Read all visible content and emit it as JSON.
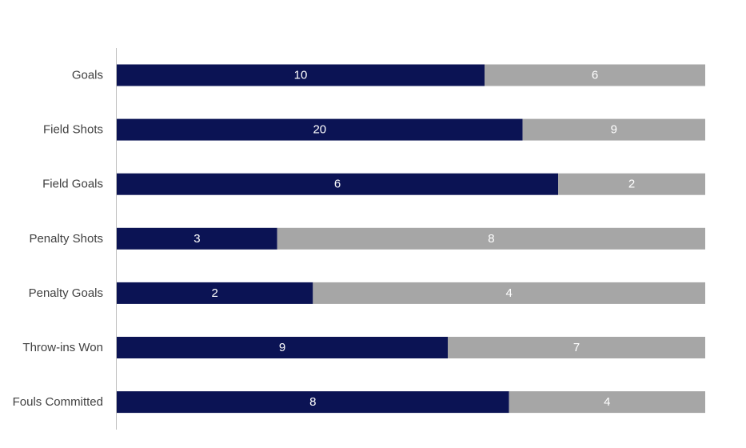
{
  "chart_data": {
    "type": "bar",
    "orientation": "horizontal",
    "stacked": "percent",
    "categories": [
      "Goals",
      "Field Shots",
      "Field Goals",
      "Penalty Shots",
      "Penalty Goals",
      "Throw-ins Won",
      "Fouls Committed"
    ],
    "series": [
      {
        "values": [
          10,
          20,
          6,
          3,
          2,
          9,
          8
        ],
        "color": "#0b1354"
      },
      {
        "values": [
          6,
          9,
          2,
          8,
          4,
          7,
          4
        ],
        "color": "#a6a6a6"
      }
    ],
    "grid": false,
    "legend": "none",
    "data_labels": true
  }
}
